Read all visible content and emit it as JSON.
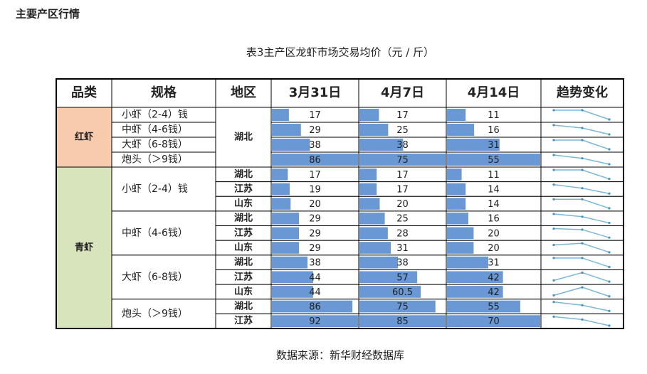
{
  "header": {
    "title": "主要产区行情"
  },
  "table": {
    "caption": "表3主产区龙虾市场交易均价（元 / 斤）",
    "columns": [
      "品类",
      "规格",
      "地区",
      "3月31日",
      "4月7日",
      "4月14日",
      "趋势变化"
    ],
    "groups": [
      {
        "name": "红虾",
        "region": "湖北",
        "specs": [
          {
            "name": "小虾（2-4）钱",
            "values": [
              17,
              17,
              11
            ]
          },
          {
            "name": "中虾（4-6钱）",
            "values": [
              29,
              25,
              16
            ]
          },
          {
            "name": "大虾（6-8钱）",
            "values": [
              38,
              38,
              31
            ]
          },
          {
            "name": "炮头（＞9钱）",
            "values": [
              86,
              75,
              55
            ]
          }
        ]
      },
      {
        "name": "青虾",
        "specs": [
          {
            "name": "小虾（2-4）钱",
            "regions": [
              {
                "name": "湖北",
                "values": [
                  17,
                  17,
                  11
                ]
              },
              {
                "name": "江苏",
                "values": [
                  19,
                  17,
                  14
                ]
              },
              {
                "name": "山东",
                "values": [
                  20,
                  20,
                  14
                ]
              }
            ]
          },
          {
            "name": "中虾（4-6钱）",
            "regions": [
              {
                "name": "湖北",
                "values": [
                  29,
                  25,
                  16
                ]
              },
              {
                "name": "江苏",
                "values": [
                  29,
                  28,
                  20
                ]
              },
              {
                "name": "山东",
                "values": [
                  29,
                  31,
                  20
                ]
              }
            ]
          },
          {
            "name": "大虾（6-8钱）",
            "regions": [
              {
                "name": "湖北",
                "values": [
                  38,
                  38,
                  31
                ]
              },
              {
                "name": "江苏",
                "values": [
                  44,
                  57,
                  42
                ]
              },
              {
                "name": "山东",
                "values": [
                  44,
                  60.5,
                  42
                ]
              }
            ]
          },
          {
            "name": "炮头（＞9钱）",
            "regions": [
              {
                "name": "湖北",
                "values": [
                  86,
                  75,
                  55
                ]
              },
              {
                "name": "江苏",
                "values": [
                  92,
                  85,
                  70
                ]
              }
            ]
          }
        ]
      }
    ]
  },
  "source": "数据来源：新华财经数据库"
}
